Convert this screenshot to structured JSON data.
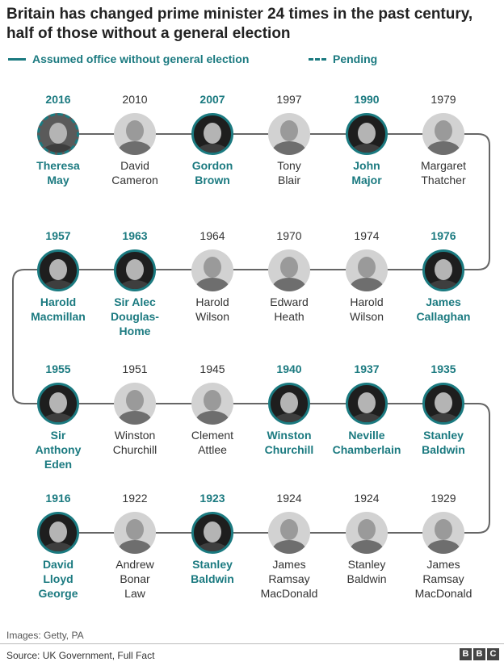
{
  "title": "Britain has changed prime minister 24 times in the past century, half of those without a general election",
  "legend": {
    "solid_label": "Assumed office without general election",
    "dashed_label": "Pending"
  },
  "accent_color": "#1b7a80",
  "chart_data": {
    "type": "timeline",
    "title": "Britain has changed prime minister 24 times in the past century, half of those without a general election",
    "entries": [
      {
        "year": "2016",
        "name": [
          "Theresa",
          "May"
        ],
        "no_election": true,
        "pending": true
      },
      {
        "year": "2010",
        "name": [
          "David",
          "Cameron"
        ],
        "no_election": false
      },
      {
        "year": "2007",
        "name": [
          "Gordon",
          "Brown"
        ],
        "no_election": true
      },
      {
        "year": "1997",
        "name": [
          "Tony",
          "Blair"
        ],
        "no_election": false
      },
      {
        "year": "1990",
        "name": [
          "John",
          "Major"
        ],
        "no_election": true
      },
      {
        "year": "1979",
        "name": [
          "Margaret",
          "Thatcher"
        ],
        "no_election": false
      },
      {
        "year": "1976",
        "name": [
          "James",
          "Callaghan"
        ],
        "no_election": true
      },
      {
        "year": "1974",
        "name": [
          "Harold",
          "Wilson"
        ],
        "no_election": false
      },
      {
        "year": "1970",
        "name": [
          "Edward",
          "Heath"
        ],
        "no_election": false
      },
      {
        "year": "1964",
        "name": [
          "Harold",
          "Wilson"
        ],
        "no_election": false
      },
      {
        "year": "1963",
        "name": [
          "Sir Alec",
          "Douglas-",
          "Home"
        ],
        "no_election": true
      },
      {
        "year": "1957",
        "name": [
          "Harold",
          "Macmillan"
        ],
        "no_election": true
      },
      {
        "year": "1955",
        "name": [
          "Sir",
          "Anthony",
          "Eden"
        ],
        "no_election": true
      },
      {
        "year": "1951",
        "name": [
          "Winston",
          "Churchill"
        ],
        "no_election": false
      },
      {
        "year": "1945",
        "name": [
          "Clement",
          "Attlee"
        ],
        "no_election": false
      },
      {
        "year": "1940",
        "name": [
          "Winston",
          "Churchill"
        ],
        "no_election": true
      },
      {
        "year": "1937",
        "name": [
          "Neville",
          "Chamberlain"
        ],
        "no_election": true
      },
      {
        "year": "1935",
        "name": [
          "Stanley",
          "Baldwin"
        ],
        "no_election": true
      },
      {
        "year": "1929",
        "name": [
          "James",
          "Ramsay",
          "MacDonald"
        ],
        "no_election": false
      },
      {
        "year": "1924",
        "name": [
          "Stanley",
          "Baldwin"
        ],
        "no_election": false
      },
      {
        "year": "1924",
        "name": [
          "James",
          "Ramsay",
          "MacDonald"
        ],
        "no_election": false
      },
      {
        "year": "1923",
        "name": [
          "Stanley",
          "Baldwin"
        ],
        "no_election": true
      },
      {
        "year": "1922",
        "name": [
          "Andrew",
          "Bonar",
          "Law"
        ],
        "no_election": false
      },
      {
        "year": "1916",
        "name": [
          "David",
          "Lloyd",
          "George"
        ],
        "no_election": true
      }
    ]
  },
  "footer": {
    "credit": "Images: Getty, PA",
    "source": "Source: UK Government, Full Fact",
    "logo_letters": [
      "B",
      "B",
      "C"
    ]
  }
}
